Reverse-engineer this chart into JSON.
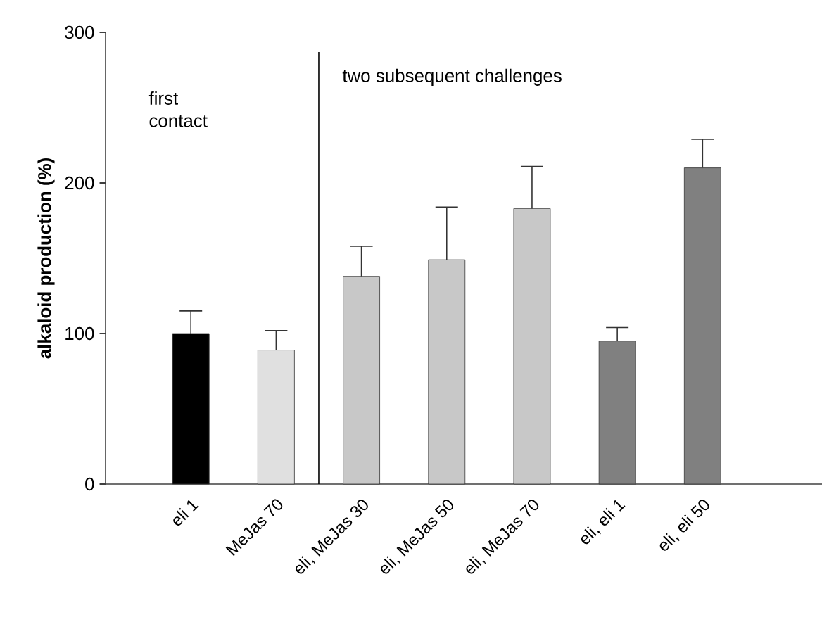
{
  "chart_data": {
    "type": "bar",
    "ylabel": "alkaloid production (%)",
    "categories": [
      "eli 1",
      "MeJas 70",
      "eli, MeJas 30",
      "eli, MeJas 50",
      "eli, MeJas 70",
      "eli, eli 1",
      "eli, eli 50"
    ],
    "values": [
      100,
      89,
      138,
      149,
      183,
      95,
      210
    ],
    "errors": [
      [
        100,
        115
      ],
      [
        89,
        102
      ],
      [
        138,
        158
      ],
      [
        149,
        184
      ],
      [
        183,
        211
      ],
      [
        95,
        104
      ],
      [
        210,
        229
      ]
    ],
    "colors": [
      "#000000",
      "#e0e0e0",
      "#c8c8c8",
      "#c8c8c8",
      "#c8c8c8",
      "#808080",
      "#808080"
    ],
    "ylim": [
      0,
      300
    ],
    "yticks": [
      0,
      100,
      200,
      300
    ],
    "annotations": [
      "first contact",
      "two subsequent challenges"
    ]
  }
}
